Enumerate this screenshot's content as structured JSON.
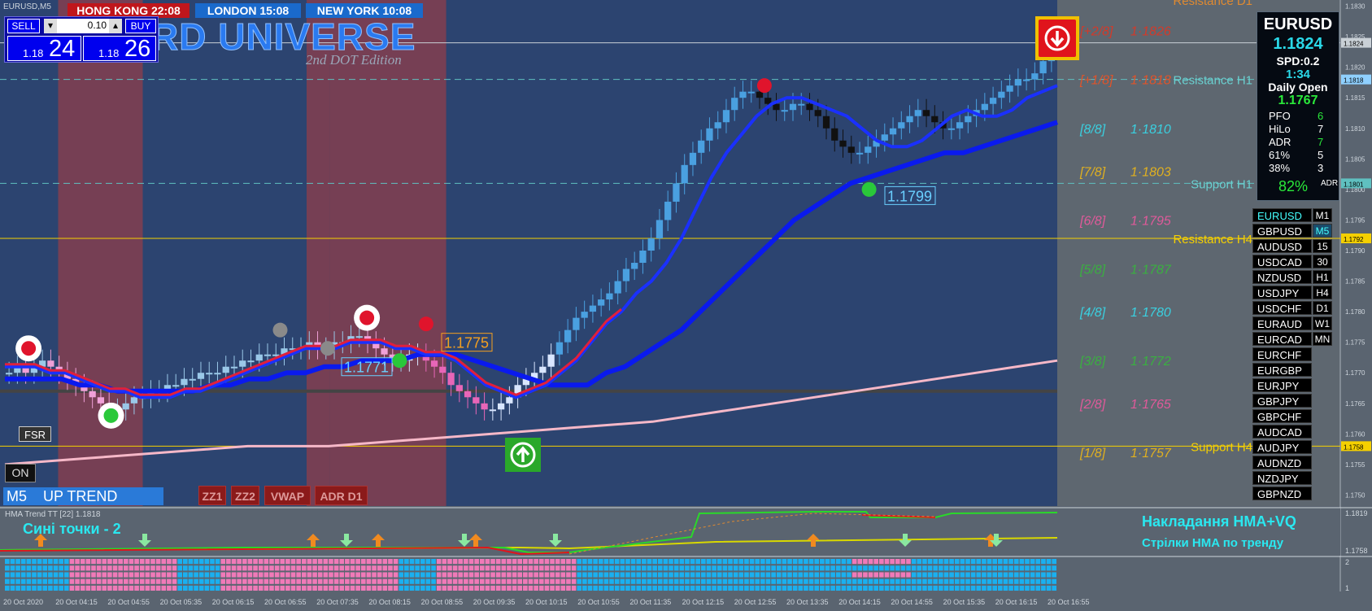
{
  "window": {
    "symbol_tf": "EURUSD,M5"
  },
  "clocks": [
    {
      "label": "HONG KONG 22:08",
      "bg": "#c0161c"
    },
    {
      "label": "LONDON  15:08",
      "bg": "#1a6acc"
    },
    {
      "label": "NEW YORK 10:08",
      "bg": "#1a6acc"
    }
  ],
  "trade": {
    "sell_label": "SELL",
    "buy_label": "BUY",
    "lot": "0.10",
    "sell_prefix": "1.18",
    "sell_big": "24",
    "buy_prefix": "1.18",
    "buy_big": "26"
  },
  "brand": {
    "title": "RD UNIVERSE",
    "subtitle": "2nd DOT Edition"
  },
  "info_panel": {
    "symbol": "EURUSD",
    "price": "1.1824",
    "spread": "SPD:0.2",
    "timer": "1:34",
    "daily_open_label": "Daily Open",
    "daily_open": "1.1767",
    "stats": [
      {
        "label": "PFO",
        "value": "6"
      },
      {
        "label": "HiLo",
        "value": "7"
      },
      {
        "label": "ADR",
        "value": "7"
      },
      {
        "label": "61%",
        "value": "5"
      },
      {
        "label": "38%",
        "value": "3"
      }
    ],
    "adr_pct": "82%",
    "adr_tag": "ADR"
  },
  "symbols": [
    {
      "sym": "EURUSD",
      "tf": "M1"
    },
    {
      "sym": "GBPUSD",
      "tf": "M5"
    },
    {
      "sym": "AUDUSD",
      "tf": "15"
    },
    {
      "sym": "USDCAD",
      "tf": "30"
    },
    {
      "sym": "NZDUSD",
      "tf": "H1"
    },
    {
      "sym": "USDJPY",
      "tf": "H4"
    },
    {
      "sym": "USDCHF",
      "tf": "D1"
    },
    {
      "sym": "EURAUD",
      "tf": "W1"
    },
    {
      "sym": "EURCAD",
      "tf": "MN"
    },
    {
      "sym": "EURCHF",
      "tf": ""
    },
    {
      "sym": "EURGBP",
      "tf": ""
    },
    {
      "sym": "EURJPY",
      "tf": ""
    },
    {
      "sym": "GBPJPY",
      "tf": ""
    },
    {
      "sym": "GBPCHF",
      "tf": ""
    },
    {
      "sym": "AUDCAD",
      "tf": ""
    },
    {
      "sym": "AUDJPY",
      "tf": ""
    },
    {
      "sym": "AUDNZD",
      "tf": ""
    },
    {
      "sym": "NZDJPY",
      "tf": ""
    },
    {
      "sym": "GBPNZD",
      "tf": ""
    }
  ],
  "buttons": {
    "fsr": "FSR",
    "on": "ON",
    "trend": "M5    UP TREND",
    "zz1": "ZZ1",
    "zz2": "ZZ2",
    "vwap": "VWAP",
    "adr_d1": "ADR D1"
  },
  "sub_panel": {
    "title": "HMA Trend TT [22] 1.1818",
    "note_left": "Сині точки - 2",
    "note_right_1": "Накладання HMA+VQ",
    "note_right_2": "Стрілки HMA по тренду",
    "scale_top": "1.1819",
    "scale_bottom": "1.1758"
  },
  "bars_panel": {
    "scale_top": "2",
    "scale_bottom": "1"
  },
  "chart_data": {
    "type": "candlestick",
    "symbol": "EURUSD",
    "timeframe": "M5",
    "ylim": [
      1.17482,
      1.1831
    ],
    "price_axis_labels": [
      "1.1830",
      "1.1825",
      "1.1820",
      "1.1815",
      "1.1810",
      "1.1805",
      "1.1800",
      "1.1795",
      "1.1790",
      "1.1785",
      "1.1780",
      "1.1775",
      "1.1770",
      "1.1765",
      "1.1760",
      "1.1755",
      "1.1750"
    ],
    "time_labels": [
      "20 Oct 2020",
      "20 Oct 04:15",
      "20 Oct 04:55",
      "20 Oct 05:35",
      "20 Oct 06:15",
      "20 Oct 06:55",
      "20 Oct 07:35",
      "20 Oct 08:15",
      "20 Oct 08:55",
      "20 Oct 09:35",
      "20 Oct 10:15",
      "20 Oct 10:55",
      "20 Oct 11:35",
      "20 Oct 12:15",
      "20 Oct 12:55",
      "20 Oct 13:35",
      "20 Oct 14:15",
      "20 Oct 14:55",
      "20 Oct 15:35",
      "20 Oct 16:15",
      "20 Oct 16:55"
    ],
    "price_tags": [
      {
        "value": 1.1824,
        "text": "1.1824",
        "color": "#c9d0d6"
      },
      {
        "value": 1.1818,
        "text": "1.1818",
        "color": "#8fd0ff"
      },
      {
        "value": 1.1801,
        "text": "1.1801",
        "color": "#5fc0c0"
      },
      {
        "value": 1.1792,
        "text": "1.1792",
        "color": "#f5d000"
      },
      {
        "value": 1.1758,
        "text": "1.1758",
        "color": "#f5d000"
      }
    ],
    "murrey_levels": [
      {
        "label": "[+2/8]",
        "value": 1.1826,
        "color": "#d23a2a"
      },
      {
        "label": "[+1/8]",
        "value": 1.1818,
        "color": "#e0542a"
      },
      {
        "label": "[8/8]",
        "value": 1.181,
        "color": "#3ad0e0"
      },
      {
        "label": "[7/8]",
        "value": 1.1803,
        "color": "#e0b020"
      },
      {
        "label": "[6/8]",
        "value": 1.1795,
        "color": "#e05a9a"
      },
      {
        "label": "[5/8]",
        "value": 1.1787,
        "color": "#3ab040"
      },
      {
        "label": "[4/8]",
        "value": 1.178,
        "color": "#3ad0e0"
      },
      {
        "label": "[3/8]",
        "value": 1.1772,
        "color": "#3ab040"
      },
      {
        "label": "[2/8]",
        "value": 1.1765,
        "color": "#e05a9a"
      },
      {
        "label": "[1/8]",
        "value": 1.1757,
        "color": "#e0b020"
      }
    ],
    "sr_labels": [
      {
        "text": "Resistance D1",
        "value": 1.1831,
        "color": "#e08a30"
      },
      {
        "text": "Resistance H1",
        "value": 1.1818,
        "color": "#6ad0d0"
      },
      {
        "text": "Support H1",
        "value": 1.1801,
        "color": "#6ad0d0"
      },
      {
        "text": "Resistance H4",
        "value": 1.1792,
        "color": "#f5d000"
      },
      {
        "text": "Support H4",
        "value": 1.1758,
        "color": "#f5d000"
      }
    ],
    "lines": [
      {
        "value": 1.1824,
        "color": "#c9d0d6",
        "style": "solid"
      },
      {
        "value": 1.1818,
        "color": "#5fc0c0",
        "style": "dashed"
      },
      {
        "value": 1.1801,
        "color": "#5fc0c0",
        "style": "dashed"
      },
      {
        "value": 1.1792,
        "color": "#f5d000",
        "style": "solid"
      },
      {
        "value": 1.1767,
        "color": "#444444",
        "style": "thick"
      },
      {
        "value": 1.1758,
        "color": "#f5d000",
        "style": "solid"
      }
    ],
    "level_tags": [
      {
        "text": "1.1771",
        "value": 1.1771,
        "color": "#6ad0ff"
      },
      {
        "text": "1.1775",
        "value": 1.1775,
        "color": "#f5a020"
      },
      {
        "text": "1.1799",
        "value": 1.1799,
        "color": "#6ad0ff"
      }
    ],
    "sessions": [
      {
        "from": 0.055,
        "to": 0.135,
        "color": "#7a3f52"
      },
      {
        "from": 0.29,
        "to": 0.312,
        "color": "#7a3f52"
      },
      {
        "from": 0.312,
        "to": 0.422,
        "color": "#7a3f52"
      }
    ],
    "price_path": [
      1.177,
      1.1771,
      1.177,
      1.1771,
      1.1772,
      1.1771,
      1.177,
      1.1769,
      1.1768,
      1.1767,
      1.1766,
      1.1765,
      1.1764,
      1.1764,
      1.1765,
      1.1766,
      1.1766,
      1.1767,
      1.1767,
      1.1768,
      1.1768,
      1.1769,
      1.1769,
      1.177,
      1.177,
      1.177,
      1.1771,
      1.1771,
      1.1772,
      1.1772,
      1.1773,
      1.1773,
      1.1773,
      1.1774,
      1.1774,
      1.1774,
      1.1775,
      1.1774,
      1.1774,
      1.1775,
      1.1775,
      1.1776,
      1.1776,
      1.1775,
      1.1774,
      1.1773,
      1.1772,
      1.1772,
      1.1773,
      1.1773,
      1.1772,
      1.1771,
      1.177,
      1.1768,
      1.1767,
      1.1766,
      1.1765,
      1.1764,
      1.1764,
      1.1765,
      1.1766,
      1.1768,
      1.1769,
      1.177,
      1.1771,
      1.1773,
      1.1775,
      1.1777,
      1.1779,
      1.178,
      1.1781,
      1.1782,
      1.1783,
      1.1785,
      1.1787,
      1.1788,
      1.179,
      1.1792,
      1.1795,
      1.1798,
      1.1801,
      1.1804,
      1.1806,
      1.1808,
      1.181,
      1.1811,
      1.1813,
      1.1815,
      1.1816,
      1.1816,
      1.1815,
      1.1814,
      1.1813,
      1.1813,
      1.1814,
      1.1814,
      1.1813,
      1.1812,
      1.181,
      1.1808,
      1.1807,
      1.1806,
      1.1806,
      1.1807,
      1.1808,
      1.1809,
      1.181,
      1.1811,
      1.1812,
      1.1813,
      1.1812,
      1.1811,
      1.181,
      1.181,
      1.1811,
      1.1812,
      1.1813,
      1.1814,
      1.1815,
      1.1816,
      1.1817,
      1.1818,
      1.1818,
      1.1819,
      1.1821,
      1.1824
    ],
    "hma_fast": [
      1.1771,
      1.1771,
      1.1771,
      1.177,
      1.177,
      1.1769,
      1.1768,
      1.1767,
      1.1767,
      1.1766,
      1.1766,
      1.1766,
      1.1767,
      1.1767,
      1.1768,
      1.1769,
      1.177,
      1.1771,
      1.1772,
      1.1773,
      1.1774,
      1.1774,
      1.1774,
      1.1775,
      1.1775,
      1.1775,
      1.1774,
      1.1774,
      1.1773,
      1.1773,
      1.1772,
      1.177,
      1.1768,
      1.1767,
      1.1766,
      1.1767,
      1.1768,
      1.177,
      1.1772,
      1.1775,
      1.1778,
      1.178,
      1.1783,
      1.1785,
      1.1788,
      1.1792,
      1.1797,
      1.1802,
      1.1806,
      1.1809,
      1.1812,
      1.1814,
      1.1815,
      1.1815,
      1.1814,
      1.1813,
      1.1812,
      1.181,
      1.1808,
      1.1807,
      1.1807,
      1.1808,
      1.181,
      1.1812,
      1.1813,
      1.1812,
      1.1812,
      1.1813,
      1.1815,
      1.1816,
      1.1817
    ],
    "hma_slow": [
      1.1769,
      1.1769,
      1.1769,
      1.1769,
      1.1768,
      1.1768,
      1.1767,
      1.1767,
      1.1767,
      1.1767,
      1.1767,
      1.1768,
      1.1768,
      1.1769,
      1.1769,
      1.177,
      1.177,
      1.1771,
      1.1771,
      1.1772,
      1.1772,
      1.1772,
      1.1773,
      1.1773,
      1.1773,
      1.1772,
      1.1771,
      1.177,
      1.1769,
      1.1768,
      1.1768,
      1.1768,
      1.177,
      1.1771,
      1.1773,
      1.1775,
      1.1777,
      1.178,
      1.1783,
      1.1786,
      1.1789,
      1.1792,
      1.1795,
      1.1797,
      1.1799,
      1.1801,
      1.1802,
      1.1803,
      1.1804,
      1.1805,
      1.1806,
      1.1806,
      1.1807,
      1.1808,
      1.1809,
      1.181,
      1.1811
    ],
    "ma_long": [
      1.1755,
      1.1756,
      1.1757,
      1.1758,
      1.1758,
      1.1759,
      1.176,
      1.1761,
      1.1762,
      1.1764,
      1.1766,
      1.1768,
      1.177,
      1.1772
    ],
    "markers": [
      {
        "t": 0.027,
        "v": 1.1774,
        "type": "red-dot-ring"
      },
      {
        "t": 0.105,
        "v": 1.1763,
        "type": "green-dot-ring"
      },
      {
        "t": 0.265,
        "v": 1.1777,
        "type": "grey-dot"
      },
      {
        "t": 0.31,
        "v": 1.1774,
        "type": "grey-dot"
      },
      {
        "t": 0.347,
        "v": 1.1779,
        "type": "red-dot-ring"
      },
      {
        "t": 0.378,
        "v": 1.1772,
        "type": "green-dot"
      },
      {
        "t": 0.403,
        "v": 1.1778,
        "type": "red-dot"
      },
      {
        "t": 0.723,
        "v": 1.1817,
        "type": "red-dot"
      },
      {
        "t": 0.822,
        "v": 1.18,
        "type": "green-dot"
      }
    ]
  }
}
